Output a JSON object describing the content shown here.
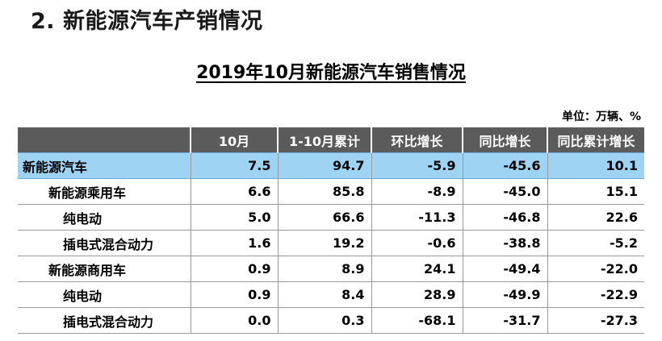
{
  "section_title": "2. 新能源汽车产销情况",
  "table_title": "2019年10月新能源汽车销售情况",
  "unit": "单位：万辆、%",
  "headers": [
    "",
    "10月",
    "1-10月累计",
    "环比增长",
    "同比增长",
    "同比累计增长"
  ],
  "rows": [
    {
      "name": "新能源汽车",
      "cells": [
        "7.5",
        "94.7",
        "-5.9",
        "-45.6",
        "10.1"
      ]
    },
    {
      "name": "新能源乘用车",
      "cells": [
        "6.6",
        "85.8",
        "-8.9",
        "-45.0",
        "15.1"
      ]
    },
    {
      "name": "纯电动",
      "cells": [
        "5.0",
        "66.6",
        "-11.3",
        "-46.8",
        "22.6"
      ]
    },
    {
      "name": "插电式混合动力",
      "cells": [
        "1.6",
        "19.2",
        "-0.6",
        "-38.8",
        "-5.2"
      ]
    },
    {
      "name": "新能源商用车",
      "cells": [
        "0.9",
        "8.9",
        "24.1",
        "-49.4",
        "-22.0"
      ]
    },
    {
      "name": "纯电动",
      "cells": [
        "0.9",
        "8.4",
        "28.9",
        "-49.9",
        "-22.9"
      ]
    },
    {
      "name": "插电式混合动力",
      "cells": [
        "0.0",
        "0.3",
        "-68.1",
        "-31.7",
        "-27.3"
      ]
    }
  ],
  "colors": {
    "header_bg": "#5b5b5b",
    "highlight_row_bg": "#9fd3f4"
  }
}
